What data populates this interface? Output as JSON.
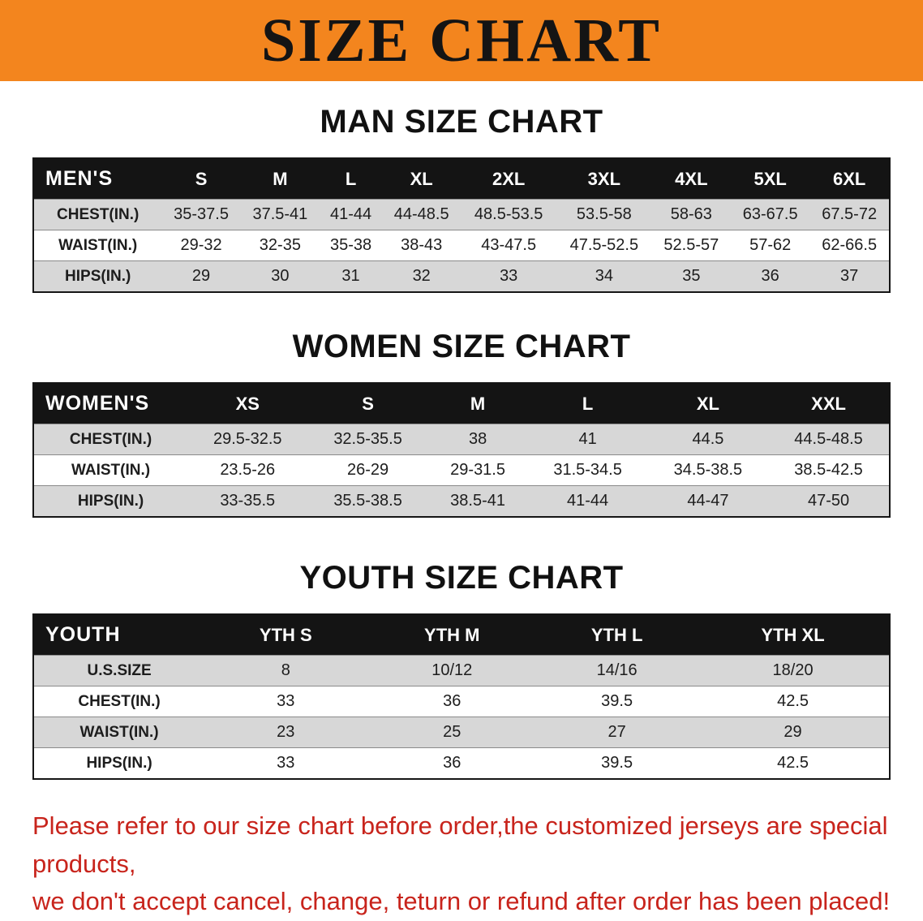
{
  "banner": {
    "title": "SIZE CHART"
  },
  "colors": {
    "banner_bg": "#f3851e",
    "banner_text": "#141414",
    "header_row_bg": "#141414",
    "header_row_text": "#ffffff",
    "stripe_gray": "#d7d7d7",
    "footer_text": "#c8241c"
  },
  "sections": [
    {
      "id": "men",
      "heading": "MAN SIZE CHART",
      "table": {
        "header": [
          "MEN'S",
          "S",
          "M",
          "L",
          "XL",
          "2XL",
          "3XL",
          "4XL",
          "5XL",
          "6XL"
        ],
        "rows": [
          [
            "CHEST(IN.)",
            "35-37.5",
            "37.5-41",
            "41-44",
            "44-48.5",
            "48.5-53.5",
            "53.5-58",
            "58-63",
            "63-67.5",
            "67.5-72"
          ],
          [
            "WAIST(IN.)",
            "29-32",
            "32-35",
            "35-38",
            "38-43",
            "43-47.5",
            "47.5-52.5",
            "52.5-57",
            "57-62",
            "62-66.5"
          ],
          [
            "HIPS(IN.)",
            "29",
            "30",
            "31",
            "32",
            "33",
            "34",
            "35",
            "36",
            "37"
          ]
        ]
      }
    },
    {
      "id": "women",
      "heading": "WOMEN SIZE CHART",
      "table": {
        "header": [
          "WOMEN'S",
          "XS",
          "S",
          "M",
          "L",
          "XL",
          "XXL"
        ],
        "rows": [
          [
            "CHEST(IN.)",
            "29.5-32.5",
            "32.5-35.5",
            "38",
            "41",
            "44.5",
            "44.5-48.5"
          ],
          [
            "WAIST(IN.)",
            "23.5-26",
            "26-29",
            "29-31.5",
            "31.5-34.5",
            "34.5-38.5",
            "38.5-42.5"
          ],
          [
            "HIPS(IN.)",
            "33-35.5",
            "35.5-38.5",
            "38.5-41",
            "41-44",
            "44-47",
            "47-50"
          ]
        ]
      }
    },
    {
      "id": "youth",
      "heading": "YOUTH SIZE CHART",
      "table": {
        "header": [
          "YOUTH",
          "YTH S",
          "YTH M",
          "YTH L",
          "YTH XL"
        ],
        "rows": [
          [
            "U.S.SIZE",
            "8",
            "10/12",
            "14/16",
            "18/20"
          ],
          [
            "CHEST(IN.)",
            "33",
            "36",
            "39.5",
            "42.5"
          ],
          [
            "WAIST(IN.)",
            "23",
            "25",
            "27",
            "29"
          ],
          [
            "HIPS(IN.)",
            "33",
            "36",
            "39.5",
            "42.5"
          ]
        ]
      }
    }
  ],
  "footer": {
    "line1": "Please refer to our size chart before order,the customized jerseys are special products,",
    "line2": "we don't accept cancel, change, teturn or refund after order has been placed!"
  }
}
